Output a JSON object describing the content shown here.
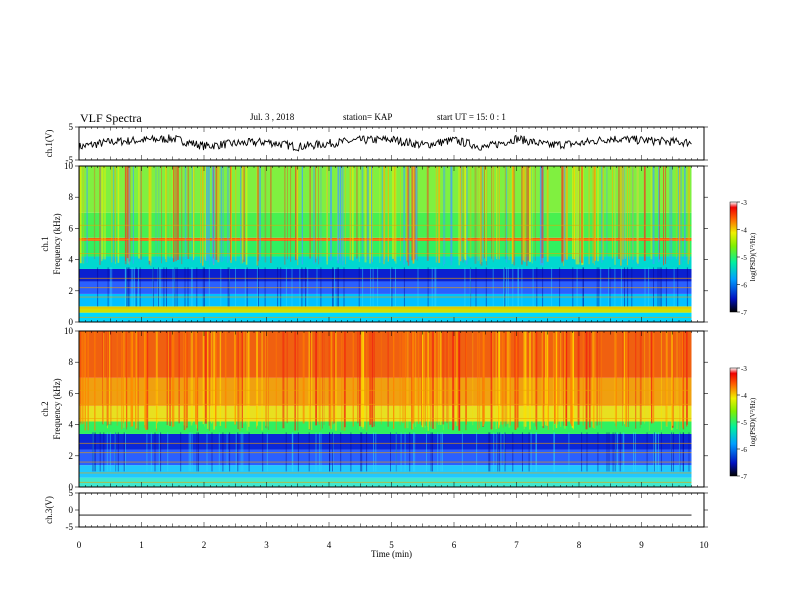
{
  "header": {
    "title": "VLF Spectra",
    "date": "Jul. 3 , 2018",
    "station": "station= KAP",
    "start": "start UT = 15: 0 : 1"
  },
  "chart_data": [
    {
      "type": "line",
      "id": "ch1-voltage",
      "ylabel": "ch.1(V)",
      "ylim": [
        -5,
        5
      ],
      "yticks": [
        "5",
        "-5"
      ],
      "xlim": [
        0,
        10
      ],
      "series": [
        {
          "x": [
            0,
            0.5,
            1,
            1.5,
            2,
            2.5,
            3,
            3.5,
            4,
            4.5,
            5,
            5.5,
            6,
            6.5,
            7,
            7.5,
            8,
            8.5,
            9,
            9.5,
            9.8
          ],
          "y": [
            -1,
            0.5,
            1,
            1.5,
            -0.8,
            0,
            0.5,
            -1,
            0,
            1,
            1.2,
            -0.5,
            1,
            -1.2,
            1.5,
            -0.5,
            0,
            1.5,
            1,
            0.5,
            0.3
          ],
          "color": "#000000"
        }
      ]
    },
    {
      "type": "heatmap",
      "id": "ch1-spectrogram",
      "ylabel": "ch.1 Frequency (kHz)",
      "ylim": [
        0,
        10
      ],
      "yticks": [
        "0",
        "2",
        "4",
        "6",
        "8",
        "10"
      ],
      "xlim": [
        0,
        10
      ],
      "bands": [
        {
          "from": 0,
          "to": 0.6,
          "color": "#00d8ff"
        },
        {
          "from": 0.6,
          "to": 1.0,
          "color": "#d4e000"
        },
        {
          "from": 1.0,
          "to": 1.8,
          "color": "#00c0ff"
        },
        {
          "from": 1.8,
          "to": 2.6,
          "color": "#2a60ff"
        },
        {
          "from": 2.6,
          "to": 3.4,
          "color": "#0a20d0"
        },
        {
          "from": 3.4,
          "to": 4.2,
          "color": "#00d8d0"
        },
        {
          "from": 4.2,
          "to": 5.2,
          "color": "#30f060"
        },
        {
          "from": 5.2,
          "to": 5.4,
          "color": "#f06010"
        },
        {
          "from": 5.4,
          "to": 7.0,
          "color": "#48f050"
        },
        {
          "from": 7.0,
          "to": 10.0,
          "color": "#80f040"
        }
      ],
      "colorbar": {
        "label": "log(PSD)(V²/Hz)",
        "ticks": [
          "-3",
          "-4",
          "-5",
          "-6",
          "-7"
        ],
        "range": [
          -7,
          -3
        ]
      }
    },
    {
      "type": "heatmap",
      "id": "ch2-spectrogram",
      "ylabel": "ch.2 Frequency (kHz)",
      "ylim": [
        0,
        10
      ],
      "yticks": [
        "0",
        "2",
        "4",
        "6",
        "8",
        "10"
      ],
      "xlim": [
        0,
        10
      ],
      "bands": [
        {
          "from": 0,
          "to": 0.6,
          "color": "#40e8d0"
        },
        {
          "from": 0.6,
          "to": 1.4,
          "color": "#20c8ff"
        },
        {
          "from": 1.4,
          "to": 2.4,
          "color": "#2a60ff"
        },
        {
          "from": 2.4,
          "to": 3.4,
          "color": "#0a28d8"
        },
        {
          "from": 3.4,
          "to": 4.2,
          "color": "#30f060"
        },
        {
          "from": 4.2,
          "to": 5.2,
          "color": "#e8e020"
        },
        {
          "from": 5.2,
          "to": 7.0,
          "color": "#f0a010"
        },
        {
          "from": 7.0,
          "to": 10.0,
          "color": "#f06010"
        }
      ],
      "colorbar": {
        "label": "log(PSD)(V²/Hz)",
        "ticks": [
          "-3",
          "-4",
          "-5",
          "-6",
          "-7"
        ],
        "range": [
          -7,
          -3
        ]
      }
    },
    {
      "type": "line",
      "id": "ch3-voltage",
      "ylabel": "ch.3(V)",
      "ylim": [
        -5,
        5
      ],
      "yticks": [
        "5",
        "0",
        "-5"
      ],
      "xlim": [
        0,
        10
      ],
      "xlabel": "Time (min)",
      "xticks": [
        "0",
        "1",
        "2",
        "3",
        "4",
        "5",
        "6",
        "7",
        "8",
        "9",
        "10"
      ],
      "series": [
        {
          "x": [
            0,
            9.8
          ],
          "y": [
            -1.5,
            -1.5
          ],
          "color": "#000000"
        }
      ]
    }
  ],
  "colors": {
    "axis": "#000000",
    "background": "#ffffff"
  }
}
